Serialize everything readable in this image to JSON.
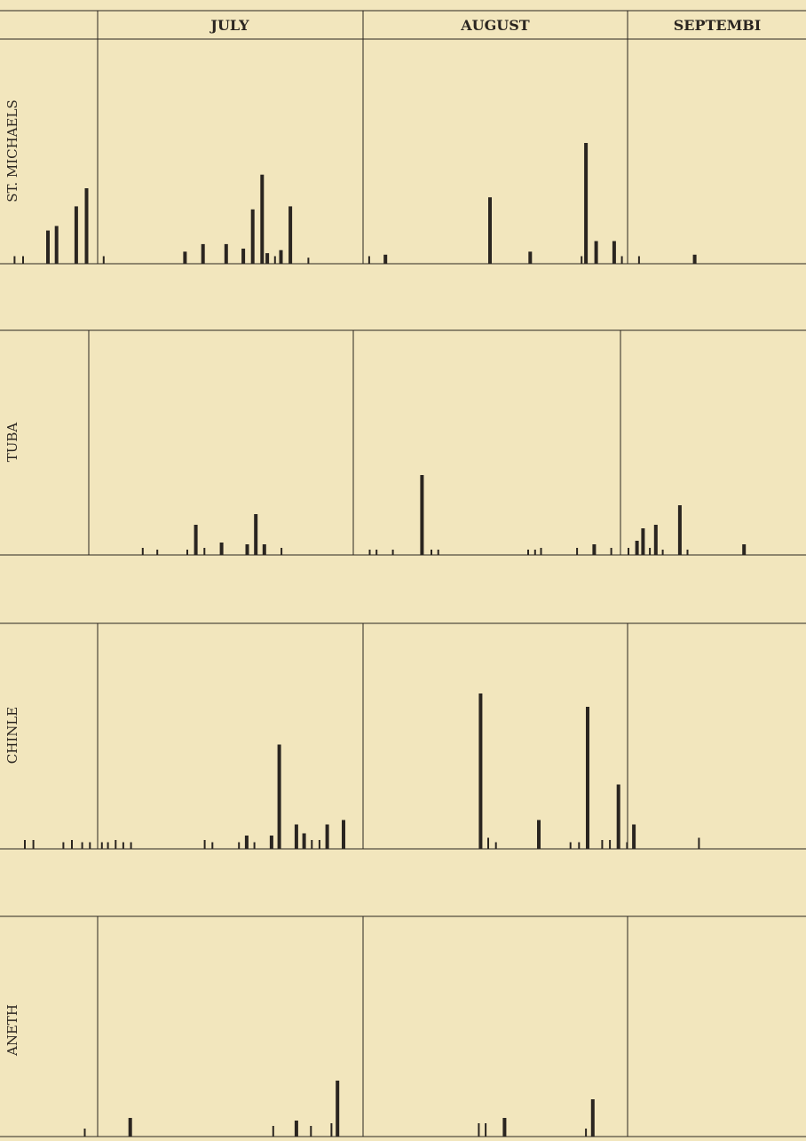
{
  "colors": {
    "paper": "#f2e6bd",
    "ink": "#2a2520"
  },
  "chart_data": {
    "type": "bar",
    "months": [
      "JULY",
      "AUGUST",
      "SEPTEMBI"
    ],
    "panels": [
      {
        "name": "ST. MICHAELS",
        "bars": [
          {
            "d": -9.7,
            "v": 0.05
          },
          {
            "d": -8.7,
            "v": 0.05
          },
          {
            "d": -5.8,
            "v": 0.22
          },
          {
            "d": -4.8,
            "v": 0.25
          },
          {
            "d": -2.5,
            "v": 0.38
          },
          {
            "d": -1.3,
            "v": 0.5
          },
          {
            "d": 0.7,
            "v": 0.05
          },
          {
            "d": 10.2,
            "v": 0.08
          },
          {
            "d": 12.3,
            "v": 0.13
          },
          {
            "d": 15.0,
            "v": 0.13
          },
          {
            "d": 17.0,
            "v": 0.1
          },
          {
            "d": 18.1,
            "v": 0.36
          },
          {
            "d": 19.2,
            "v": 0.59
          },
          {
            "d": 19.8,
            "v": 0.07
          },
          {
            "d": 20.7,
            "v": 0.05
          },
          {
            "d": 21.4,
            "v": 0.09
          },
          {
            "d": 22.5,
            "v": 0.38
          },
          {
            "d": 24.6,
            "v": 0.04
          },
          {
            "d": 31.7,
            "v": 0.05
          },
          {
            "d": 33.6,
            "v": 0.06
          },
          {
            "d": 45.8,
            "v": 0.44
          },
          {
            "d": 50.5,
            "v": 0.08
          },
          {
            "d": 56.5,
            "v": 0.05
          },
          {
            "d": 57.0,
            "v": 0.8
          },
          {
            "d": 58.2,
            "v": 0.15
          },
          {
            "d": 60.3,
            "v": 0.15
          },
          {
            "d": 61.2,
            "v": 0.05
          },
          {
            "d": 63.2,
            "v": 0.05
          },
          {
            "d": 69.7,
            "v": 0.06
          }
        ]
      },
      {
        "name": "TUBA",
        "bars": [
          {
            "d": 6.3,
            "v": 0.04
          },
          {
            "d": 8.0,
            "v": 0.03
          },
          {
            "d": 11.5,
            "v": 0.03
          },
          {
            "d": 12.5,
            "v": 0.17
          },
          {
            "d": 13.5,
            "v": 0.04
          },
          {
            "d": 15.5,
            "v": 0.07
          },
          {
            "d": 18.5,
            "v": 0.06
          },
          {
            "d": 19.5,
            "v": 0.23
          },
          {
            "d": 20.5,
            "v": 0.06
          },
          {
            "d": 22.5,
            "v": 0.04
          },
          {
            "d": 32.8,
            "v": 0.03
          },
          {
            "d": 33.6,
            "v": 0.03
          },
          {
            "d": 35.5,
            "v": 0.03
          },
          {
            "d": 38.9,
            "v": 0.45
          },
          {
            "d": 40.0,
            "v": 0.03
          },
          {
            "d": 40.8,
            "v": 0.03
          },
          {
            "d": 51.3,
            "v": 0.03
          },
          {
            "d": 52.1,
            "v": 0.03
          },
          {
            "d": 52.8,
            "v": 0.04
          },
          {
            "d": 57.0,
            "v": 0.04
          },
          {
            "d": 59.0,
            "v": 0.06
          },
          {
            "d": 61.0,
            "v": 0.04
          },
          {
            "d": 63.0,
            "v": 0.04
          },
          {
            "d": 64.0,
            "v": 0.08
          },
          {
            "d": 64.7,
            "v": 0.15
          },
          {
            "d": 65.5,
            "v": 0.04
          },
          {
            "d": 66.2,
            "v": 0.17
          },
          {
            "d": 67.0,
            "v": 0.03
          },
          {
            "d": 69.0,
            "v": 0.28
          },
          {
            "d": 69.9,
            "v": 0.03
          },
          {
            "d": 76.5,
            "v": 0.06
          }
        ]
      },
      {
        "name": "CHINLE",
        "bars": [
          {
            "d": -8.5,
            "v": 0.04
          },
          {
            "d": -7.5,
            "v": 0.04
          },
          {
            "d": -4.0,
            "v": 0.03
          },
          {
            "d": -3.0,
            "v": 0.04
          },
          {
            "d": -1.8,
            "v": 0.03
          },
          {
            "d": -0.9,
            "v": 0.03
          },
          {
            "d": 0.5,
            "v": 0.03
          },
          {
            "d": 1.2,
            "v": 0.03
          },
          {
            "d": 2.1,
            "v": 0.04
          },
          {
            "d": 3.0,
            "v": 0.03
          },
          {
            "d": 3.9,
            "v": 0.03
          },
          {
            "d": 12.5,
            "v": 0.04
          },
          {
            "d": 13.4,
            "v": 0.03
          },
          {
            "d": 16.5,
            "v": 0.03
          },
          {
            "d": 17.4,
            "v": 0.06
          },
          {
            "d": 18.3,
            "v": 0.03
          },
          {
            "d": 20.3,
            "v": 0.06
          },
          {
            "d": 21.2,
            "v": 0.47
          },
          {
            "d": 23.2,
            "v": 0.11
          },
          {
            "d": 24.1,
            "v": 0.07
          },
          {
            "d": 25.0,
            "v": 0.04
          },
          {
            "d": 25.9,
            "v": 0.04
          },
          {
            "d": 26.8,
            "v": 0.11
          },
          {
            "d": 28.7,
            "v": 0.13
          },
          {
            "d": 44.7,
            "v": 0.7
          },
          {
            "d": 45.6,
            "v": 0.05
          },
          {
            "d": 46.5,
            "v": 0.03
          },
          {
            "d": 51.5,
            "v": 0.13
          },
          {
            "d": 55.2,
            "v": 0.03
          },
          {
            "d": 56.2,
            "v": 0.03
          },
          {
            "d": 57.2,
            "v": 0.64
          },
          {
            "d": 58.9,
            "v": 0.04
          },
          {
            "d": 59.8,
            "v": 0.04
          },
          {
            "d": 60.8,
            "v": 0.29
          },
          {
            "d": 61.8,
            "v": 0.03
          },
          {
            "d": 62.6,
            "v": 0.11
          },
          {
            "d": 70.2,
            "v": 0.05
          }
        ]
      },
      {
        "name": "ANETH",
        "bars": [
          {
            "d": -1.5,
            "v": 0.03
          },
          {
            "d": 3.8,
            "v": 0.07
          },
          {
            "d": 20.5,
            "v": 0.04
          },
          {
            "d": 23.2,
            "v": 0.06
          },
          {
            "d": 24.9,
            "v": 0.04
          },
          {
            "d": 27.3,
            "v": 0.05
          },
          {
            "d": 28.0,
            "v": 0.21
          },
          {
            "d": 44.5,
            "v": 0.05
          },
          {
            "d": 45.3,
            "v": 0.05
          },
          {
            "d": 47.5,
            "v": 0.07
          },
          {
            "d": 57.0,
            "v": 0.03
          },
          {
            "d": 57.8,
            "v": 0.14
          }
        ]
      }
    ]
  }
}
